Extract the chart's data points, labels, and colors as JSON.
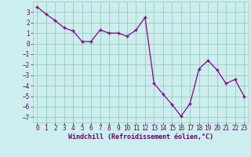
{
  "x": [
    0,
    1,
    2,
    3,
    4,
    5,
    6,
    7,
    8,
    9,
    10,
    11,
    12,
    13,
    14,
    15,
    16,
    17,
    18,
    19,
    20,
    21,
    22,
    23
  ],
  "y": [
    3.5,
    2.8,
    2.2,
    1.5,
    1.2,
    0.2,
    0.2,
    1.3,
    1.0,
    1.0,
    0.7,
    1.3,
    2.5,
    -3.8,
    -4.8,
    -5.8,
    -6.9,
    -5.7,
    -2.4,
    -1.6,
    -2.5,
    -3.8,
    -3.4,
    -5.0
  ],
  "line_color": "#880088",
  "marker": "+",
  "marker_size": 3.5,
  "marker_linewidth": 1.0,
  "bg_color": "#cceeee",
  "grid_color": "#99ccbb",
  "xlabel": "Windchill (Refroidissement éolien,°C)",
  "xlabel_color": "#660066",
  "xlabel_fontsize": 6.0,
  "tick_color": "#660066",
  "tick_fontsize": 5.5,
  "ylim": [
    -7.5,
    4.0
  ],
  "xlim": [
    -0.5,
    23.5
  ],
  "yticks": [
    -7,
    -6,
    -5,
    -4,
    -3,
    -2,
    -1,
    0,
    1,
    2,
    3
  ],
  "xticks": [
    0,
    1,
    2,
    3,
    4,
    5,
    6,
    7,
    8,
    9,
    10,
    11,
    12,
    13,
    14,
    15,
    16,
    17,
    18,
    19,
    20,
    21,
    22,
    23
  ]
}
